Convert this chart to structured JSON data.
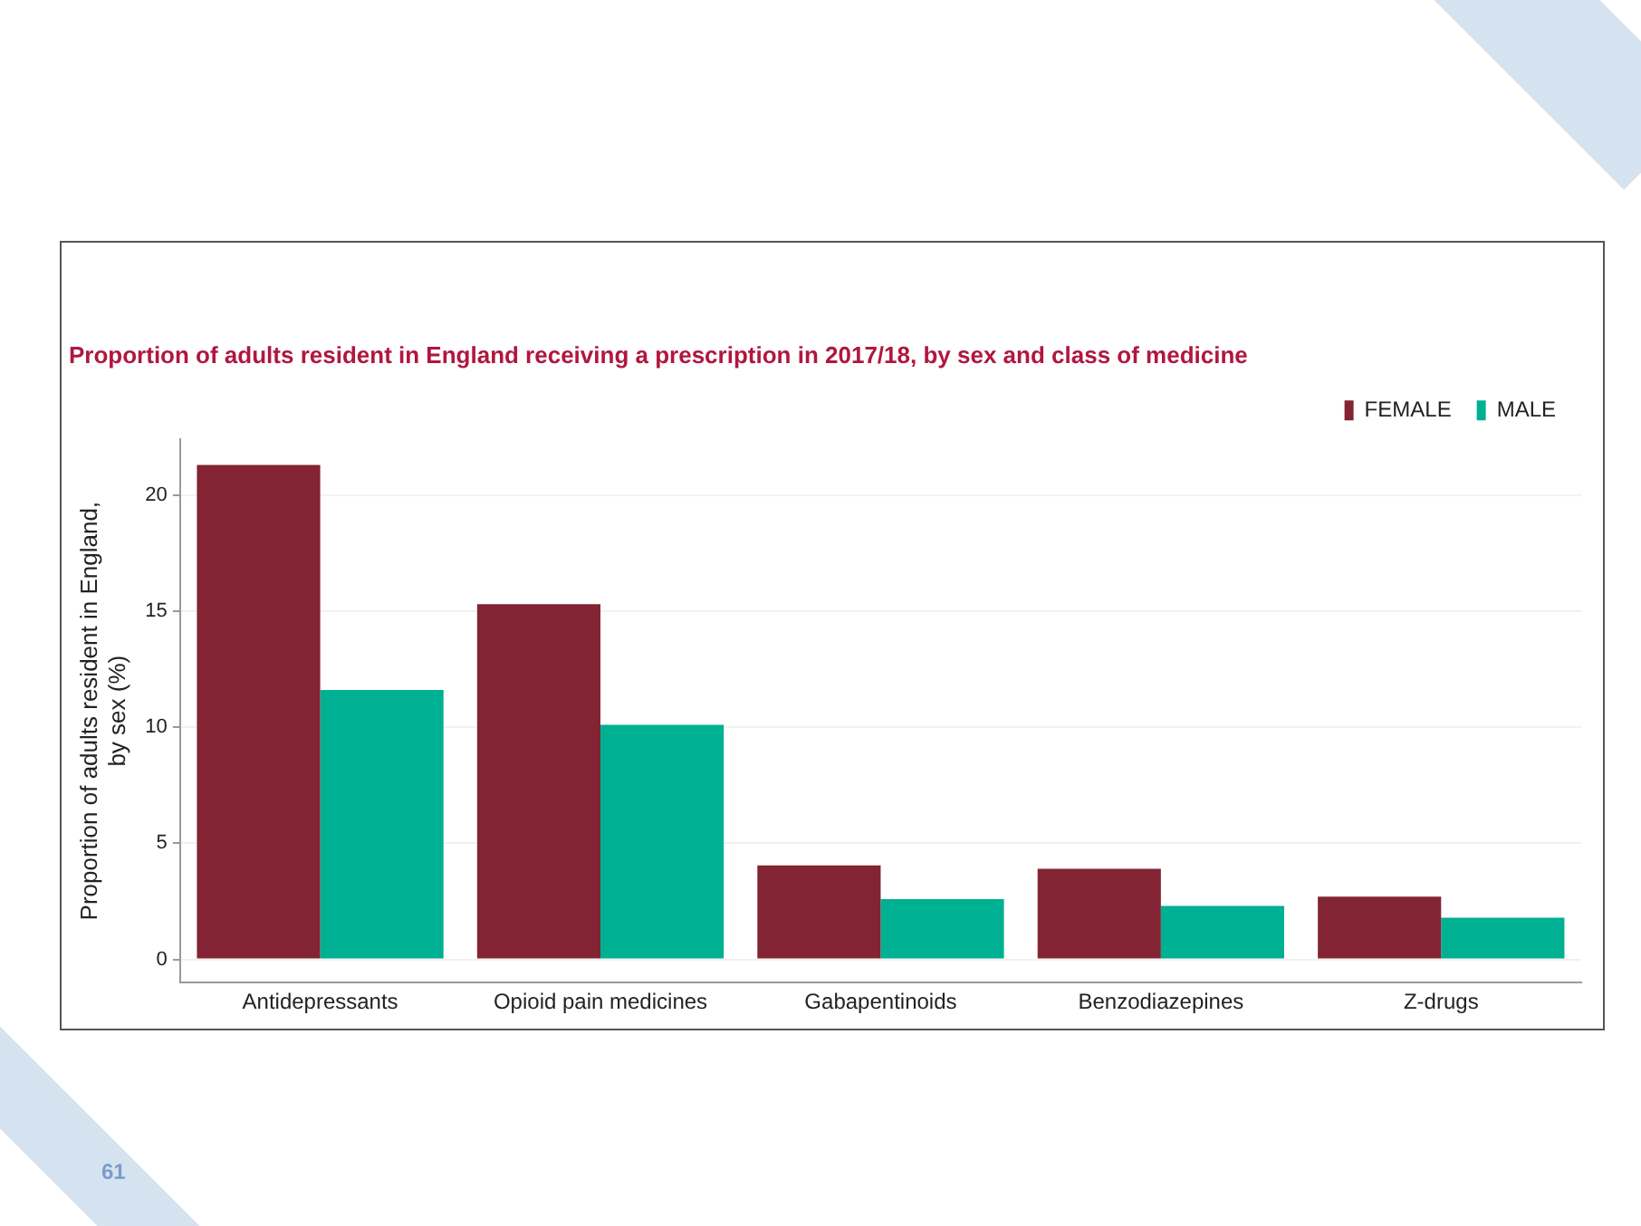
{
  "chart_data": {
    "type": "bar",
    "title": "Proportion of adults resident in England receiving a prescription in 2017/18, by sex and class of medicine",
    "ylabel": "Proportion of adults resident in England,\nby sex (%)",
    "categories": [
      "Antidepressants",
      "Opioid pain medicines",
      "Gabapentinoids",
      "Benzodiazepines",
      "Z-drugs"
    ],
    "series": [
      {
        "name": "FEMALE",
        "color": "#822433",
        "values": [
          21.3,
          15.3,
          4.05,
          3.9,
          2.7
        ]
      },
      {
        "name": "MALE",
        "color": "#00b092",
        "values": [
          11.6,
          10.1,
          2.6,
          2.3,
          1.8
        ]
      }
    ],
    "ylim": [
      -1,
      22.4
    ],
    "yticks": [
      0,
      5,
      10,
      15,
      20
    ],
    "grid": "y",
    "legend": "top right",
    "annotations": [
      "61"
    ]
  }
}
